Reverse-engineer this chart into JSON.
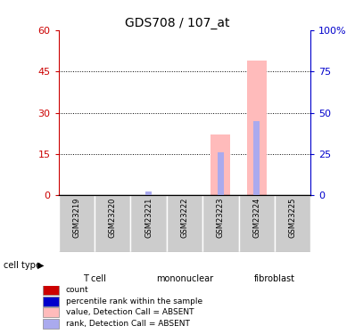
{
  "title": "GDS708 / 107_at",
  "samples": [
    "GSM23219",
    "GSM23220",
    "GSM23221",
    "GSM23222",
    "GSM23223",
    "GSM23224",
    "GSM23225"
  ],
  "cell_types": [
    {
      "label": "T cell",
      "samples": [
        0,
        1
      ],
      "color": "#bbffbb"
    },
    {
      "label": "mononuclear",
      "samples": [
        2,
        3,
        4
      ],
      "color": "#66ee66"
    },
    {
      "label": "fibroblast",
      "samples": [
        5,
        6
      ],
      "color": "#33cc44"
    }
  ],
  "left_ylim": [
    0,
    60
  ],
  "right_ylim": [
    0,
    100
  ],
  "left_yticks": [
    0,
    15,
    30,
    45,
    60
  ],
  "right_yticks": [
    0,
    25,
    50,
    75,
    100
  ],
  "left_ylabel_color": "#cc0000",
  "right_ylabel_color": "#0000cc",
  "bars_absent_value": [
    0,
    0,
    0,
    0,
    22,
    49,
    0
  ],
  "bars_absent_rank": [
    0,
    0,
    2.5,
    0,
    26,
    45,
    0
  ],
  "absent_value_color": "#ffbbbb",
  "absent_rank_color": "#aaaaee",
  "legend_items": [
    {
      "color": "#cc0000",
      "label": "count"
    },
    {
      "color": "#0000cc",
      "label": "percentile rank within the sample"
    },
    {
      "color": "#ffbbbb",
      "label": "value, Detection Call = ABSENT"
    },
    {
      "color": "#aaaaee",
      "label": "rank, Detection Call = ABSENT"
    }
  ],
  "sample_box_color": "#cccccc",
  "grid_yticks": [
    15,
    30,
    45
  ],
  "cell_type_label": "cell type"
}
